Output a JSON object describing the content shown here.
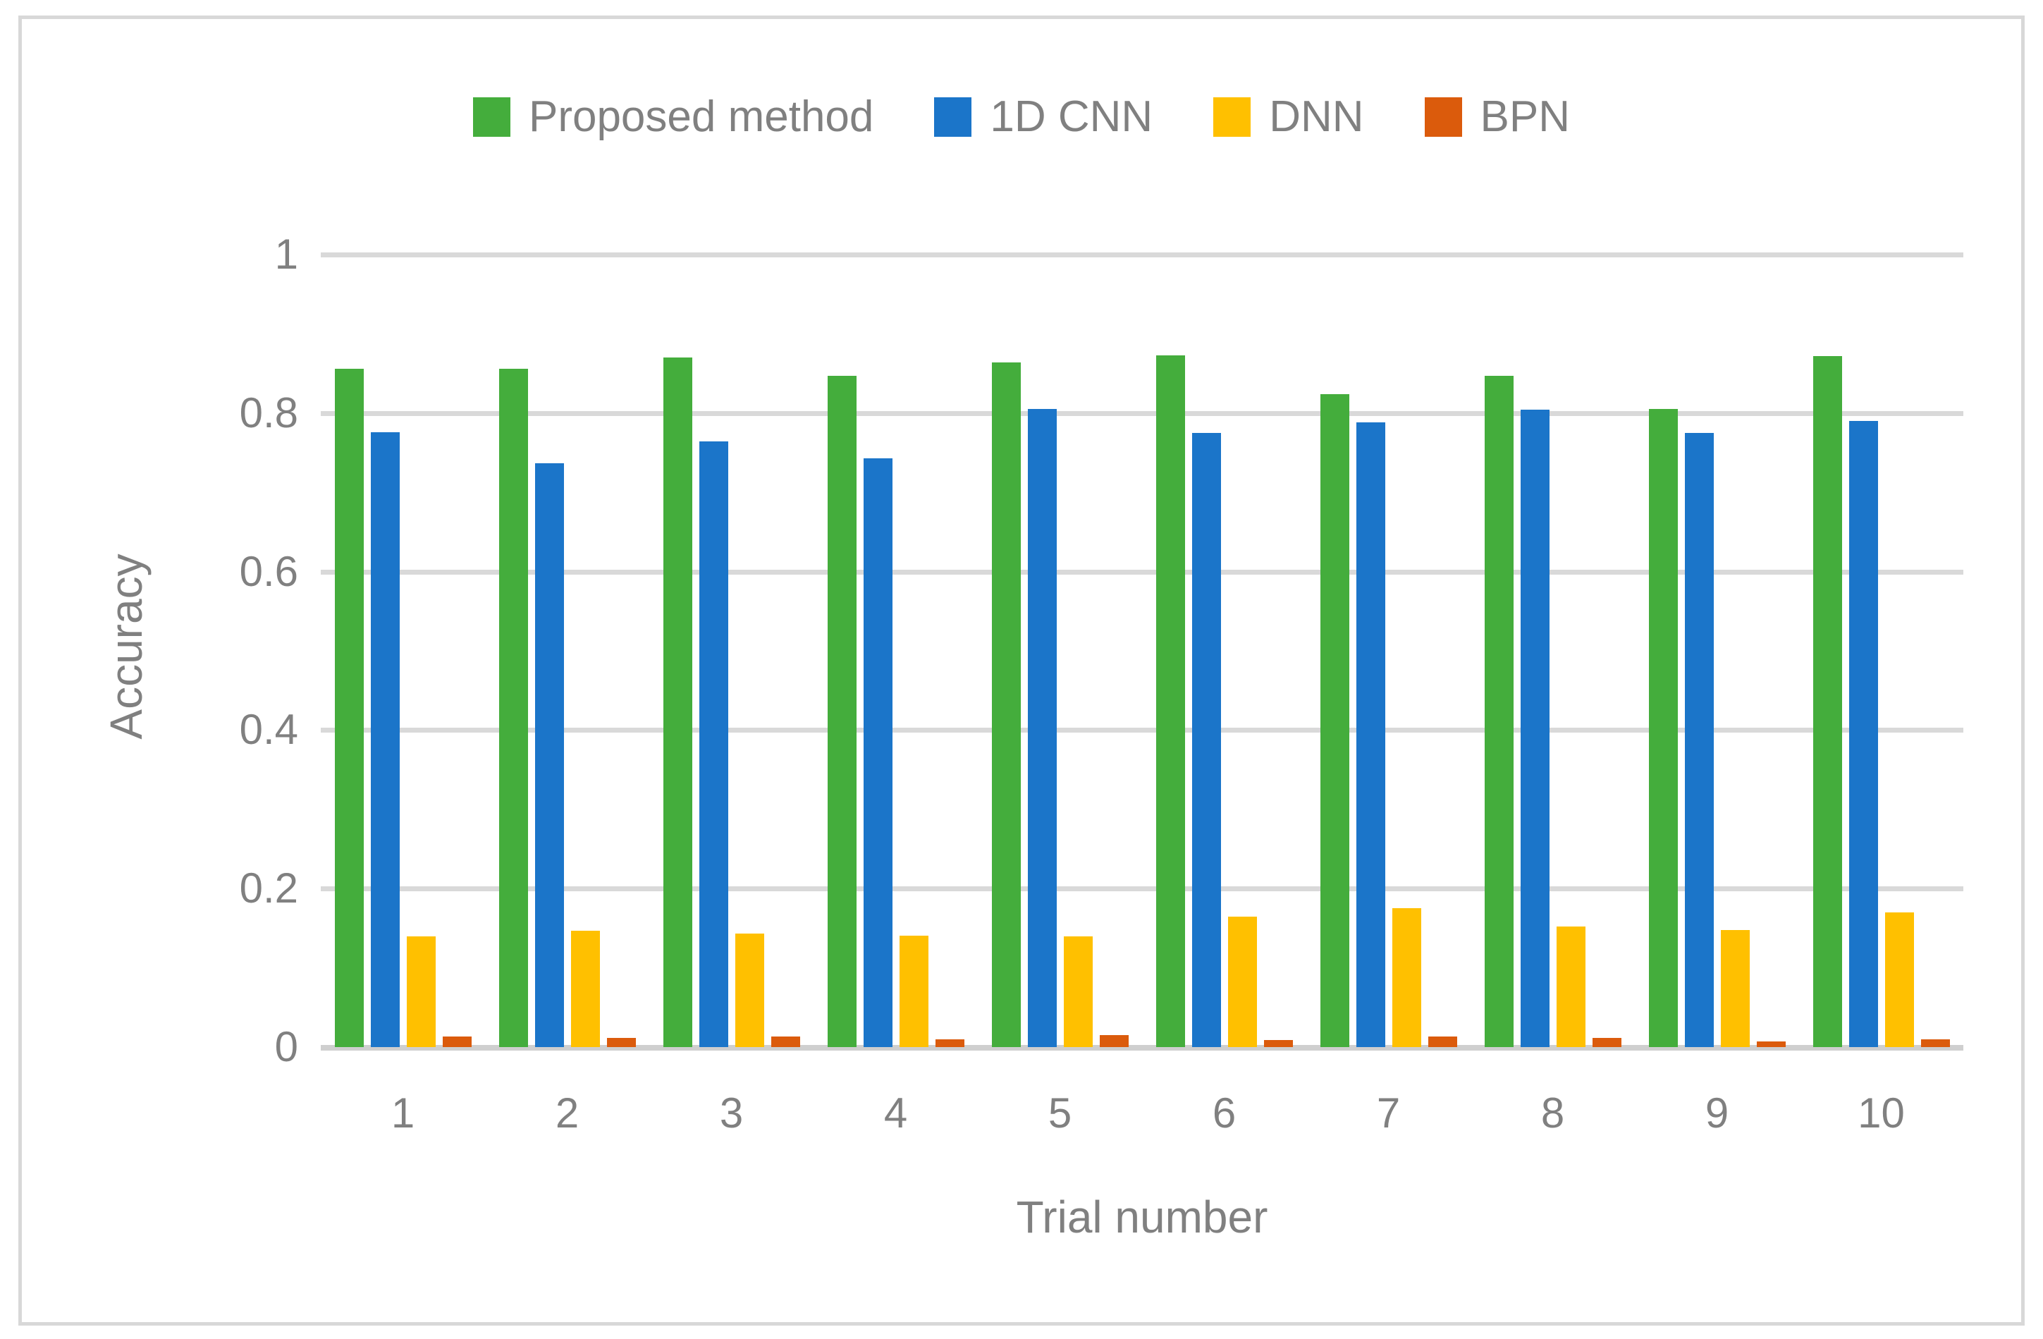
{
  "chart_data": {
    "type": "bar",
    "title": "",
    "xlabel": "Trial number",
    "ylabel": "Accuracy",
    "categories": [
      "1",
      "2",
      "3",
      "4",
      "5",
      "6",
      "7",
      "8",
      "9",
      "10"
    ],
    "series": [
      {
        "name": "Proposed method",
        "color": "#44ad3c",
        "values": [
          0.856,
          0.856,
          0.87,
          0.847,
          0.864,
          0.873,
          0.824,
          0.847,
          0.805,
          0.872
        ]
      },
      {
        "name": "1D CNN",
        "color": "#1b75c9",
        "values": [
          0.776,
          0.737,
          0.764,
          0.743,
          0.805,
          0.775,
          0.788,
          0.804,
          0.775,
          0.79
        ]
      },
      {
        "name": "DNN",
        "color": "#ffc000",
        "values": [
          0.14,
          0.147,
          0.143,
          0.141,
          0.14,
          0.165,
          0.175,
          0.152,
          0.148,
          0.17
        ]
      },
      {
        "name": "BPN",
        "color": "#db5b0c",
        "values": [
          0.013,
          0.012,
          0.013,
          0.01,
          0.015,
          0.009,
          0.013,
          0.012,
          0.007,
          0.01
        ]
      }
    ],
    "y_ticks": [
      "0",
      "0.2",
      "0.4",
      "0.6",
      "0.8",
      "1"
    ],
    "ylim": [
      0,
      1
    ],
    "grid": true,
    "legend_position": "top",
    "gridline_color": "#d9d9d9",
    "text_color": "#808080"
  }
}
